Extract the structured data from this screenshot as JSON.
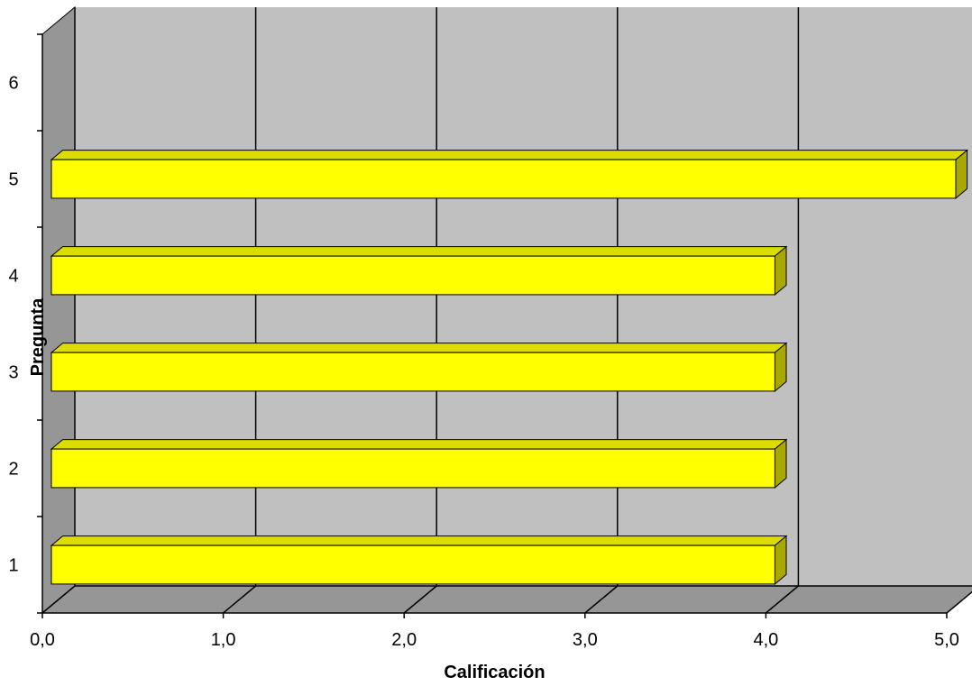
{
  "chart_data": {
    "type": "bar",
    "orientation": "horizontal",
    "three_d": true,
    "title": "",
    "xlabel": "Calificación",
    "ylabel": "Pregunta",
    "categories": [
      "1",
      "2",
      "3",
      "4",
      "5",
      "6"
    ],
    "values": [
      4.0,
      4.0,
      4.0,
      4.0,
      5.0,
      null
    ],
    "xlim": [
      0,
      5
    ],
    "x_ticks": [
      "0,0",
      "1,0",
      "2,0",
      "3,0",
      "4,0",
      "5,0"
    ],
    "grid": true,
    "legend": "none",
    "colors": {
      "bar_front": "#ffff00",
      "bar_top": "#dcdc00",
      "bar_side": "#a8a800",
      "plot_wall": "#c0c0c0",
      "side_wall": "#969696",
      "floor": "#969696",
      "grid_line": "#000000"
    }
  }
}
